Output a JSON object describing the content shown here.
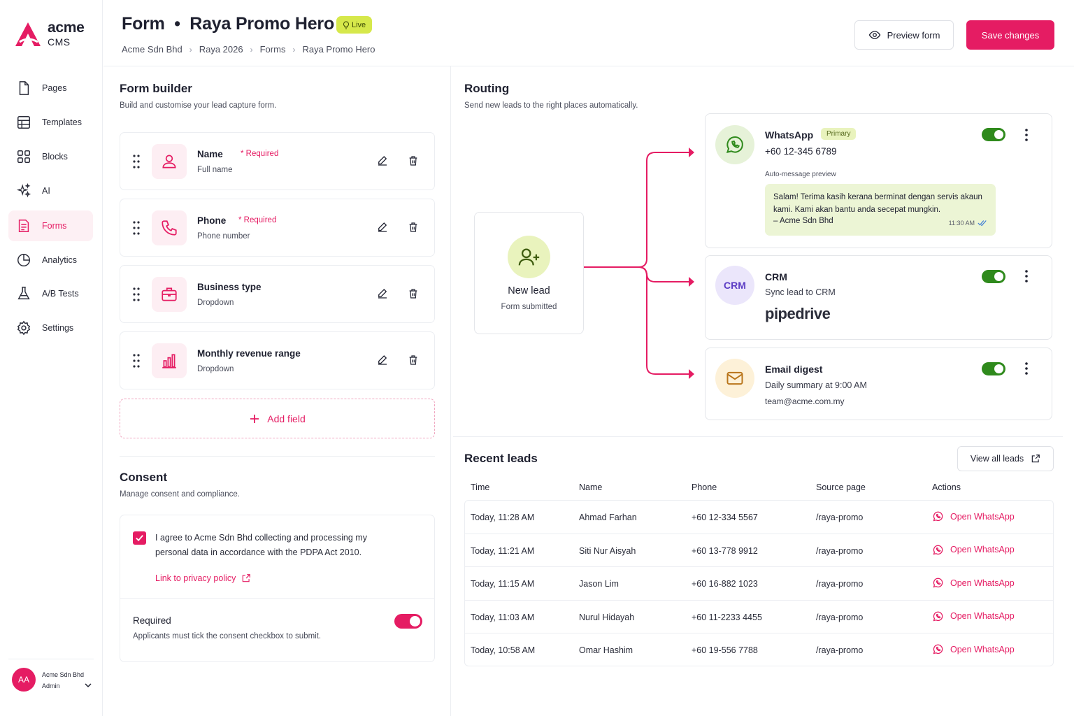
{
  "brand": {
    "line1": "acme",
    "line2": "CMS"
  },
  "nav": [
    {
      "label": "Pages",
      "icon": "file-icon"
    },
    {
      "label": "Templates",
      "icon": "layout-icon"
    },
    {
      "label": "Blocks",
      "icon": "grid-icon"
    },
    {
      "label": "AI",
      "icon": "sparkles-icon"
    },
    {
      "label": "Forms",
      "icon": "form-icon",
      "active": true
    },
    {
      "label": "Analytics",
      "icon": "pie-chart-icon"
    },
    {
      "label": "A/B Tests",
      "icon": "flask-icon"
    },
    {
      "label": "Settings",
      "icon": "gear-icon"
    }
  ],
  "user": {
    "initials": "AA",
    "org": "Acme Sdn Bhd",
    "role": "Admin"
  },
  "header": {
    "title": "Form  •  Raya Promo Hero",
    "status": "Live",
    "breadcrumb": [
      "Acme Sdn Bhd",
      "Raya 2026",
      "Forms",
      "Raya Promo Hero"
    ],
    "preview_label": "Preview form",
    "save_label": "Save changes"
  },
  "form_builder": {
    "title": "Form builder",
    "subtitle": "Build and customise your lead capture form.",
    "fields": [
      {
        "label": "Name",
        "required": "* Required",
        "sub": "Full name",
        "icon": "user-icon"
      },
      {
        "label": "Phone",
        "required": "* Required",
        "sub": "Phone number",
        "icon": "phone-icon"
      },
      {
        "label": "Business type",
        "required": "",
        "sub": "Dropdown",
        "icon": "briefcase-icon"
      },
      {
        "label": "Monthly revenue range",
        "required": "",
        "sub": "Dropdown",
        "icon": "bar-chart-icon"
      }
    ],
    "add_field_label": "Add field"
  },
  "consent": {
    "title": "Consent",
    "subtitle": "Manage consent and compliance.",
    "text": "I agree to Acme Sdn Bhd collecting and processing my personal data in accordance with the PDPA Act 2010.",
    "link": "Link to privacy policy",
    "required_title": "Required",
    "required_sub": "Applicants must tick the consent checkbox to submit.",
    "required_on": true
  },
  "routing": {
    "title": "Routing",
    "subtitle": "Send new leads to the right places automatically.",
    "source": {
      "title": "New lead",
      "sub": "Form submitted"
    },
    "whatsapp": {
      "name": "WhatsApp",
      "badge": "Primary",
      "number": "+60 12-345 6789",
      "preview_label": "Auto-message preview",
      "message": "Salam! Terima kasih kerana berminat dengan servis akaun kami. Kami akan bantu anda secepat mungkin.",
      "signature": "– Acme Sdn Bhd",
      "time": "11:30 AM",
      "enabled": true
    },
    "crm": {
      "badge": "CRM",
      "name": "CRM",
      "sub": "Sync lead to CRM",
      "provider": "pipedrive",
      "enabled": true
    },
    "email": {
      "name": "Email digest",
      "sub": "Daily summary at 9:00 AM",
      "address": "team@acme.com.my",
      "enabled": true
    }
  },
  "recent_leads": {
    "title": "Recent leads",
    "view_all": "View all leads",
    "columns": [
      "Time",
      "Name",
      "Phone",
      "Source page",
      "Actions"
    ],
    "rows": [
      {
        "time": "Today, 11:28 AM",
        "name": "Ahmad Farhan",
        "phone": "+60 12-334 5567",
        "source": "/raya-promo",
        "action": "Open WhatsApp"
      },
      {
        "time": "Today, 11:21 AM",
        "name": "Siti Nur Aisyah",
        "phone": "+60 13-778 9912",
        "source": "/raya-promo",
        "action": "Open WhatsApp"
      },
      {
        "time": "Today, 11:15 AM",
        "name": "Jason Lim",
        "phone": "+60 16-882 1023",
        "source": "/raya-promo",
        "action": "Open WhatsApp"
      },
      {
        "time": "Today, 11:03 AM",
        "name": "Nurul Hidayah",
        "phone": "+60 11-2233 4455",
        "source": "/raya-promo",
        "action": "Open WhatsApp"
      },
      {
        "time": "Today, 10:58 AM",
        "name": "Omar Hashim",
        "phone": "+60 19-556 7788",
        "source": "/raya-promo",
        "action": "Open WhatsApp"
      }
    ]
  },
  "colors": {
    "accent": "#e51c63",
    "live": "#d6e84b",
    "green": "#2f8a1c"
  }
}
